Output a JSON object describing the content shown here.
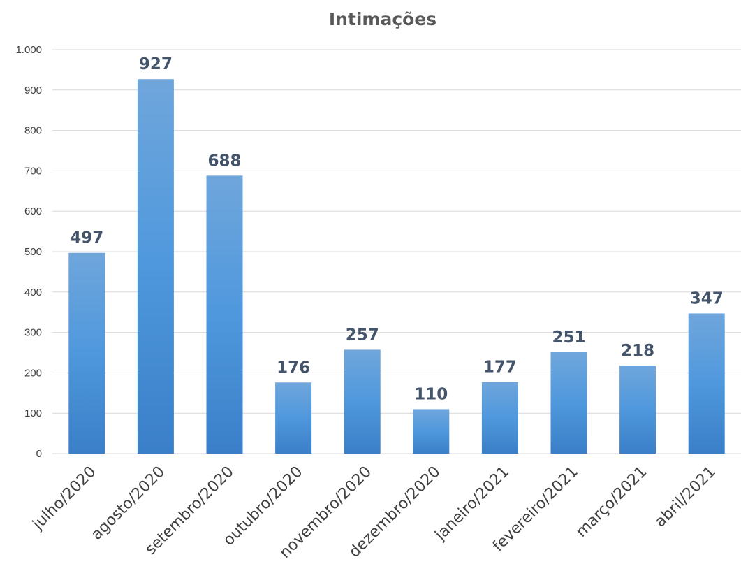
{
  "chart_data": {
    "type": "bar",
    "title": "Intimações",
    "xlabel": "",
    "ylabel": "",
    "categories": [
      "julho/2020",
      "agosto/2020",
      "setembro/2020",
      "outubro/2020",
      "novembro/2020",
      "dezembro/2020",
      "janeiro/2021",
      "fevereiro/2021",
      "março/2021",
      "abril/2021"
    ],
    "values": [
      497,
      927,
      688,
      176,
      257,
      110,
      177,
      251,
      218,
      347
    ],
    "data_labels": [
      "497",
      "927",
      "688",
      "176",
      "257",
      "110",
      "177",
      "251",
      "218",
      "347"
    ],
    "ylim": [
      0,
      1000
    ],
    "yticks": [
      0,
      100,
      200,
      300,
      400,
      500,
      600,
      700,
      800,
      900,
      1000
    ],
    "ytick_labels": [
      "0",
      "100",
      "200",
      "300",
      "400",
      "500",
      "600",
      "700",
      "800",
      "900",
      "1.000"
    ],
    "grid": true,
    "legend": "none",
    "colors": {
      "bar_top": "#6fa6dc",
      "bar_mid": "#4f98dd",
      "bar_bottom": "#3a7fc8",
      "label": "#44546a",
      "title": "#595959",
      "gridline": "#d9d9d9"
    }
  }
}
